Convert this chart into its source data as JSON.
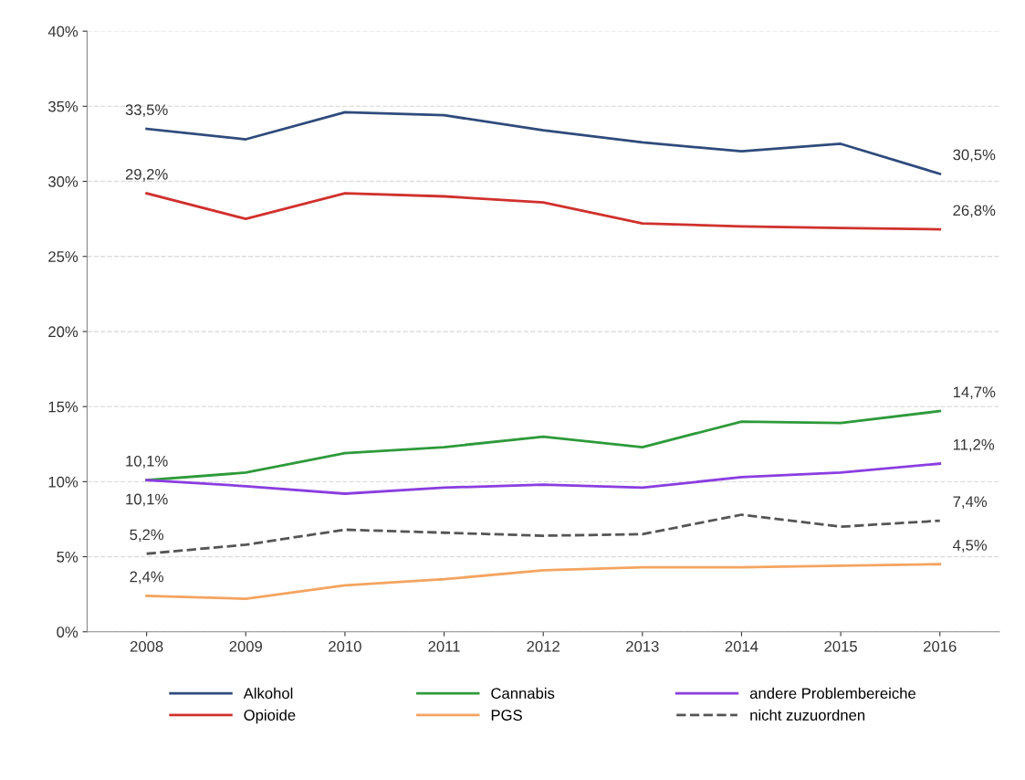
{
  "chart_data": {
    "type": "line",
    "categories": [
      "2008",
      "2009",
      "2010",
      "2011",
      "2012",
      "2013",
      "2014",
      "2015",
      "2016"
    ],
    "ylim": [
      0,
      40
    ],
    "yticks": [
      {
        "value": 0,
        "label": "0%"
      },
      {
        "value": 5,
        "label": "5%"
      },
      {
        "value": 10,
        "label": "10%"
      },
      {
        "value": 15,
        "label": "15%"
      },
      {
        "value": 20,
        "label": "20%"
      },
      {
        "value": 25,
        "label": "25%"
      },
      {
        "value": 30,
        "label": "30%"
      },
      {
        "value": 35,
        "label": "35%"
      },
      {
        "value": 40,
        "label": "40%"
      }
    ],
    "grid": "y",
    "legend": "bottom",
    "marker": "none",
    "series": [
      {
        "name": "Alkohol",
        "color": "#2f4b7c",
        "values": [
          33.5,
          32.8,
          34.6,
          34.4,
          33.4,
          32.6,
          32.0,
          32.5,
          30.5
        ],
        "value_labels": [
          "33,5%",
          null,
          null,
          null,
          null,
          null,
          null,
          null,
          "30,5%"
        ]
      },
      {
        "name": "Opioide",
        "color": "#d0312d",
        "values": [
          29.2,
          27.5,
          29.2,
          29.0,
          28.6,
          27.2,
          27.0,
          26.9,
          26.8
        ],
        "value_labels": [
          "29,2%",
          null,
          null,
          null,
          null,
          null,
          null,
          null,
          "26,8%"
        ]
      },
      {
        "name": "Cannabis",
        "color": "#2e9a3a",
        "values": [
          10.1,
          10.6,
          11.9,
          12.3,
          13.0,
          12.3,
          14.0,
          13.9,
          14.7
        ],
        "value_labels": [
          "10,1%",
          null,
          null,
          null,
          null,
          null,
          null,
          null,
          "14,7%"
        ]
      },
      {
        "name": "PGS",
        "color": "#f4a460",
        "values": [
          2.4,
          2.2,
          3.1,
          3.5,
          4.1,
          4.3,
          4.3,
          4.4,
          4.5
        ],
        "value_labels": [
          "2,4%",
          null,
          null,
          null,
          null,
          null,
          null,
          null,
          "4,5%"
        ]
      },
      {
        "name": "andere Problembereiche",
        "color": "#8a3ee0",
        "values": [
          10.1,
          9.7,
          9.2,
          9.6,
          9.8,
          9.6,
          10.3,
          10.6,
          11.2
        ],
        "value_labels": [
          "10,1%",
          null,
          null,
          null,
          null,
          null,
          null,
          null,
          "11,2%"
        ]
      },
      {
        "name": "nicht zuzuordnen",
        "color": "#555555",
        "line_style": "dashed",
        "values": [
          5.2,
          5.8,
          6.8,
          6.6,
          6.4,
          6.5,
          7.8,
          7.0,
          7.4
        ],
        "value_labels": [
          "5,2%",
          null,
          null,
          null,
          null,
          null,
          null,
          null,
          "7,4%"
        ]
      }
    ]
  }
}
